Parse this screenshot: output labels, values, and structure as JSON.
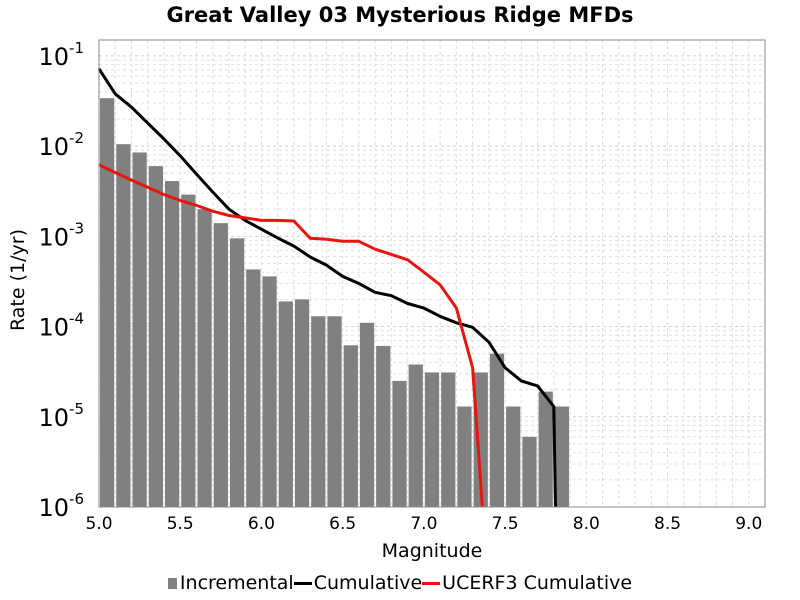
{
  "chart_data": {
    "type": "bar",
    "title": "Great Valley 03 Mysterious Ridge MFDs",
    "xlabel": "Magnitude",
    "ylabel": "Rate (1/yr)",
    "xlim": [
      5.0,
      9.1
    ],
    "ylim": [
      1e-06,
      0.15
    ],
    "yscale": "log",
    "grid": true,
    "legend_position": "bottom",
    "x_ticks": [
      "5.0",
      "5.5",
      "6.0",
      "6.5",
      "7.0",
      "7.5",
      "8.0",
      "8.5",
      "9.0"
    ],
    "y_tick_labels": [
      {
        "base": "10",
        "exp": "-6",
        "value": 1e-06
      },
      {
        "base": "10",
        "exp": "-5",
        "value": 1e-05
      },
      {
        "base": "10",
        "exp": "-4",
        "value": 0.0001
      },
      {
        "base": "10",
        "exp": "-3",
        "value": 0.001
      },
      {
        "base": "10",
        "exp": "-2",
        "value": 0.01
      },
      {
        "base": "10",
        "exp": "-1",
        "value": 0.1
      }
    ],
    "series": [
      {
        "name": "Incremental",
        "kind": "bar",
        "color": "#808080",
        "x": [
          5.05,
          5.15,
          5.25,
          5.35,
          5.45,
          5.55,
          5.65,
          5.75,
          5.85,
          5.95,
          6.05,
          6.15,
          6.25,
          6.35,
          6.45,
          6.55,
          6.65,
          6.75,
          6.85,
          6.95,
          7.05,
          7.15,
          7.25,
          7.35,
          7.45,
          7.55,
          7.65,
          7.75,
          7.85
        ],
        "values": [
          0.034,
          0.0105,
          0.0085,
          0.006,
          0.0041,
          0.0029,
          0.002,
          0.0014,
          0.00095,
          0.00043,
          0.00036,
          0.00019,
          0.0002,
          0.00013,
          0.00013,
          6.2e-05,
          0.00011,
          6.1e-05,
          2.5e-05,
          3.8e-05,
          3.1e-05,
          3.1e-05,
          1.3e-05,
          3.1e-05,
          5e-05,
          1.3e-05,
          6e-06,
          1.9e-05,
          1.3e-05
        ]
      },
      {
        "name": "Cumulative",
        "kind": "line",
        "color": "#000000",
        "x": [
          5.0,
          5.1,
          5.2,
          5.3,
          5.4,
          5.5,
          5.6,
          5.7,
          5.8,
          5.9,
          6.0,
          6.1,
          6.2,
          6.3,
          6.4,
          6.5,
          6.6,
          6.7,
          6.8,
          6.9,
          7.0,
          7.1,
          7.2,
          7.3,
          7.4,
          7.5,
          7.6,
          7.7,
          7.8,
          7.81
        ],
        "values": [
          0.072,
          0.038,
          0.027,
          0.018,
          0.012,
          0.0078,
          0.0049,
          0.0031,
          0.002,
          0.0015,
          0.0012,
          0.00096,
          0.00078,
          0.00059,
          0.00048,
          0.00036,
          0.0003,
          0.00024,
          0.00022,
          0.00018,
          0.00016,
          0.00013,
          0.00011,
          9.8e-05,
          6.7e-05,
          3.5e-05,
          2.5e-05,
          2.2e-05,
          1.3e-05,
          1e-06
        ]
      },
      {
        "name": "UCERF3 Cumulative",
        "kind": "line",
        "color": "#e8150f",
        "x": [
          5.0,
          5.1,
          5.2,
          5.3,
          5.4,
          5.5,
          5.6,
          5.7,
          5.8,
          5.9,
          6.0,
          6.1,
          6.2,
          6.3,
          6.4,
          6.5,
          6.6,
          6.7,
          6.8,
          6.9,
          7.0,
          7.1,
          7.2,
          7.3,
          7.36
        ],
        "values": [
          0.0062,
          0.0051,
          0.0042,
          0.0035,
          0.0029,
          0.0025,
          0.0022,
          0.0019,
          0.0017,
          0.0016,
          0.0015,
          0.0015,
          0.00148,
          0.00095,
          0.00093,
          0.00088,
          0.00088,
          0.00072,
          0.00063,
          0.00055,
          0.0004,
          0.00029,
          0.00016,
          3.5e-05,
          1e-06
        ]
      }
    ]
  }
}
